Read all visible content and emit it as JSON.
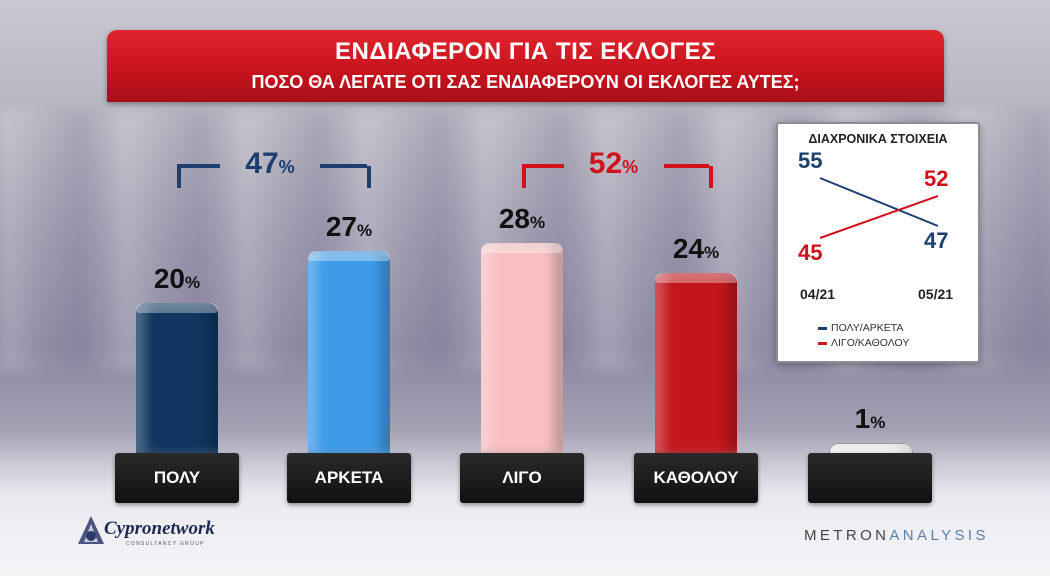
{
  "header": {
    "title": "ΕΝΔΙΑΦΕΡΟΝ ΓΙΑ ΤΙΣ ΕΚΛΟΓΕΣ",
    "subtitle": "ΠΟΣΟ ΘΑ ΛΕΓΑΤΕ ΟΤΙ ΣΑΣ ΕΝΔΙΑΦΕΡΟΥΝ ΟΙ ΕΚΛΟΓΕΣ ΑΥΤΕΣ;"
  },
  "chart_data": [
    {
      "type": "bar",
      "categories": [
        "ΠΟΛΥ",
        "ΑΡΚΕΤΑ",
        "ΛΙΓΟ",
        "ΚΑΘΟΛΟΥ",
        ""
      ],
      "values": [
        20,
        27,
        28,
        24,
        1
      ],
      "value_suffix": "%",
      "bar_colors": [
        "#0f3660",
        "#3d9be8",
        "#f8c0c2",
        "#c2161c",
        "#f2f2f2"
      ],
      "groups": [
        {
          "value": 47,
          "suffix": "%",
          "color": "#1d3e6e",
          "members": [
            "ΠΟΛΥ",
            "ΑΡΚΕΤΑ"
          ]
        },
        {
          "value": 52,
          "suffix": "%",
          "color": "#d0121a",
          "members": [
            "ΛΙΓΟ",
            "ΚΑΘΟΛΟΥ"
          ]
        }
      ],
      "ylim": [
        0,
        30
      ]
    },
    {
      "type": "line",
      "title": "ΔΙΑΧΡΟΝΙΚΑ ΣΤΟΙΧΕΙΑ",
      "x": [
        "04/21",
        "05/21"
      ],
      "series": [
        {
          "name": "ΠΟΛΥ/ΑΡΚΕΤΑ",
          "values": [
            55,
            47
          ],
          "color": "#1d3e6e"
        },
        {
          "name": "ΛΙΓΟ/ΚΑΘΟΛΟΥ",
          "values": [
            45,
            52
          ],
          "color": "#d0121a"
        }
      ],
      "ylim": [
        44,
        56
      ],
      "legend": "bottom"
    }
  ],
  "logos": {
    "left": "Cypronetwork",
    "left_tag": "CONSULTANCY GROUP",
    "right_a": "METRON",
    "right_b": "ANALYSIS"
  }
}
